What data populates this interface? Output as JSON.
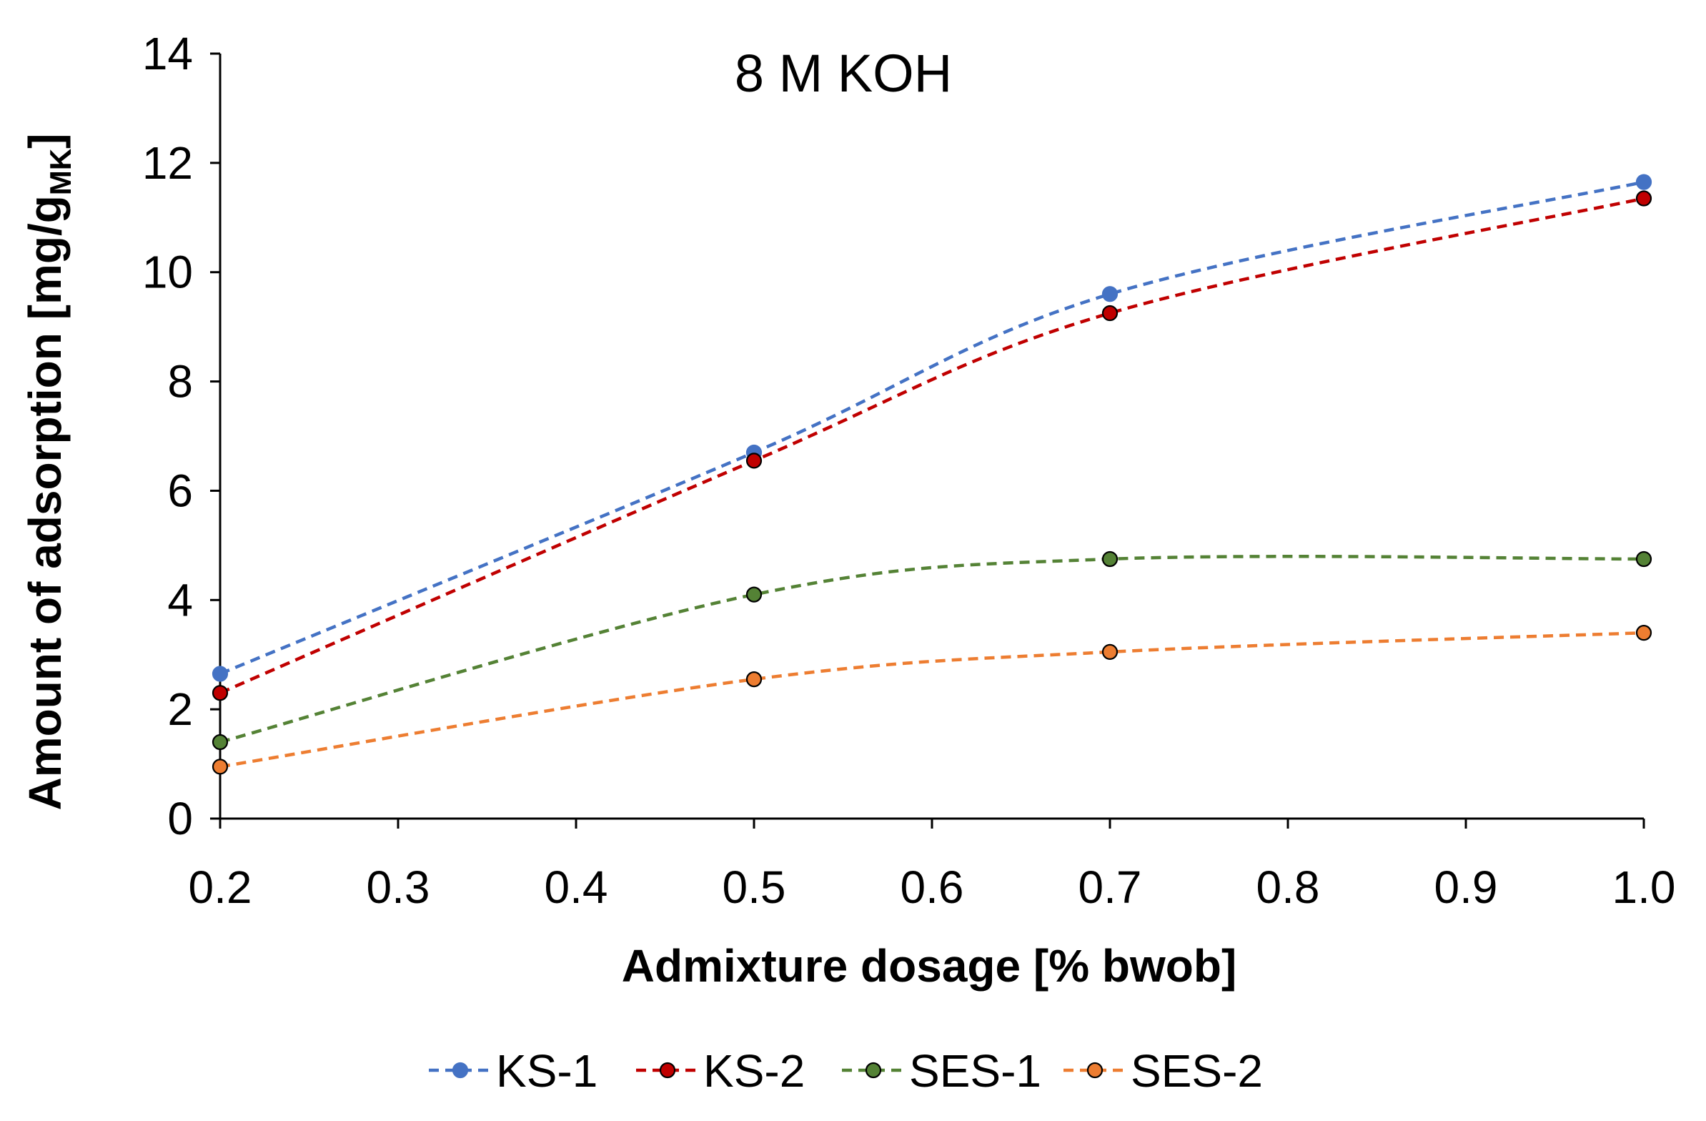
{
  "chart_data": {
    "type": "line",
    "title": "8 M KOH",
    "xlabel": "Admixture dosage [% bwob]",
    "ylabel_main": "Amount of adsorption [mg/g",
    "ylabel_subscript": "MK",
    "ylabel_end": "]",
    "xlim": [
      0.2,
      1.0
    ],
    "ylim": [
      0,
      14
    ],
    "xticks": [
      "0.2",
      "0.3",
      "0.4",
      "0.5",
      "0.6",
      "0.7",
      "0.8",
      "0.9",
      "1.0"
    ],
    "yticks": [
      "0",
      "2",
      "4",
      "6",
      "8",
      "10",
      "12",
      "14"
    ],
    "grid": false,
    "legend_position": "bottom",
    "x": [
      0.2,
      0.5,
      0.7,
      1.0
    ],
    "series": [
      {
        "name": "KS-1",
        "values": [
          2.65,
          6.7,
          9.6,
          11.65
        ],
        "color": "#4472C4",
        "marker_edge": "#4472C4"
      },
      {
        "name": "KS-2",
        "values": [
          2.3,
          6.55,
          9.25,
          11.35
        ],
        "color": "#C00000",
        "marker_edge": "#000000"
      },
      {
        "name": "SES-1",
        "values": [
          1.4,
          4.1,
          4.75,
          4.75
        ],
        "color": "#548235",
        "marker_edge": "#000000"
      },
      {
        "name": "SES-2",
        "values": [
          0.95,
          2.55,
          3.05,
          3.4
        ],
        "color": "#ED7D31",
        "marker_edge": "#000000"
      }
    ]
  }
}
